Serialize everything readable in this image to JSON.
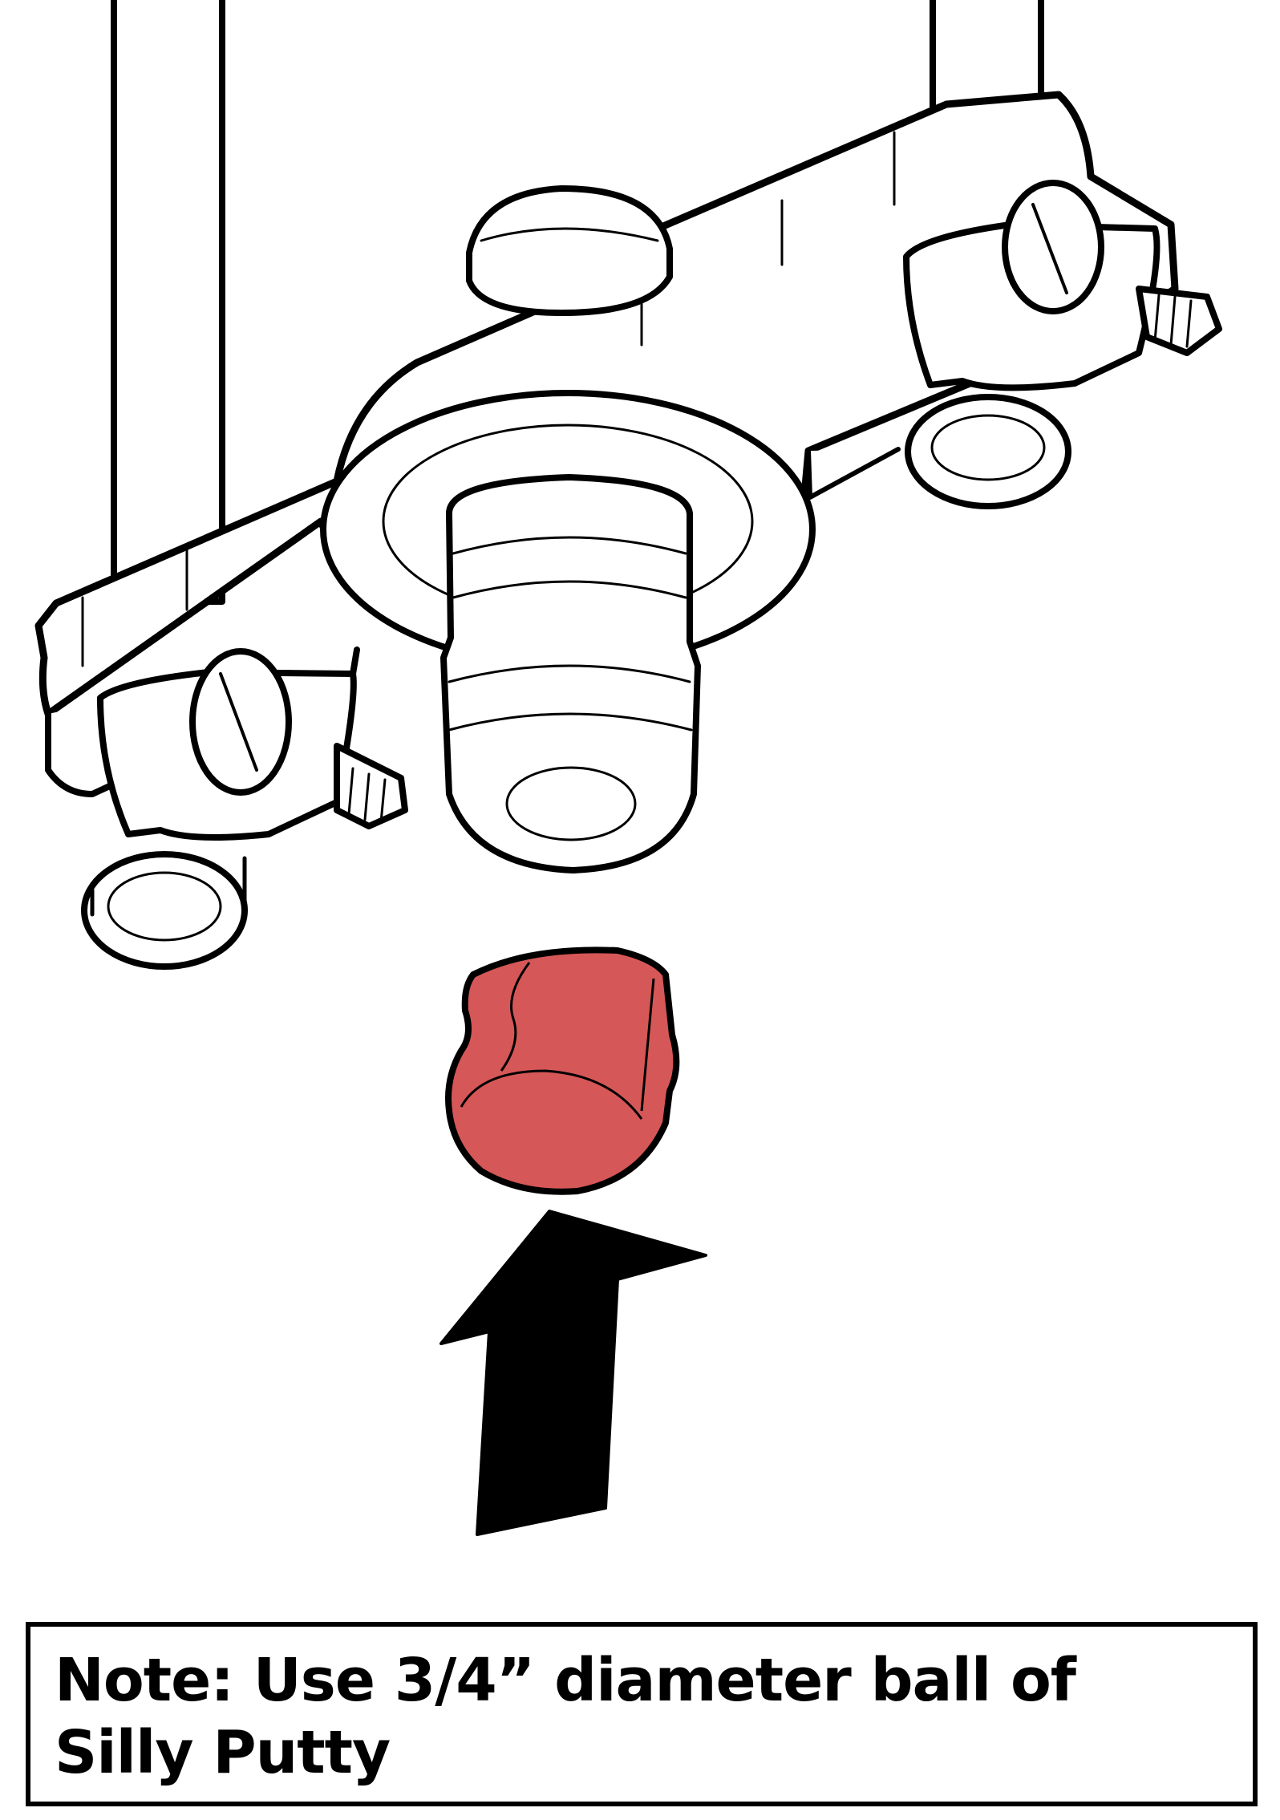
{
  "note": {
    "text": "Note: Use 3/4” diameter ball of Silly Putty"
  },
  "colors": {
    "putty": "#d65757",
    "outline": "#000000",
    "fill": "#ffffff"
  },
  "icons": {
    "arrow": "up-arrow-icon"
  }
}
